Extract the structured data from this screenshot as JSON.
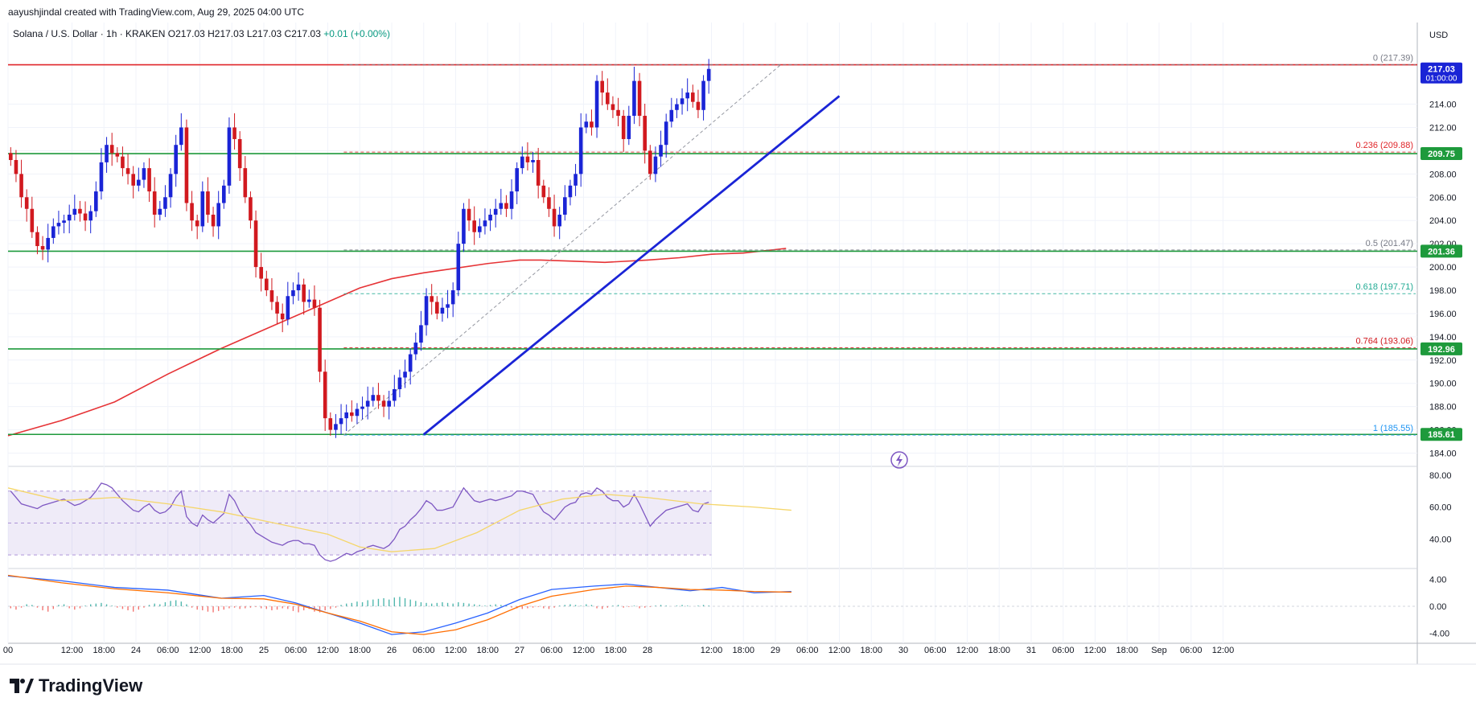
{
  "credit": "aayushjindal created with TradingView.com, Aug 29, 2025 04:00 UTC",
  "symbol": {
    "name": "Solana / U.S. Dollar · 1h · KRAKEN",
    "ohlc": "O217.03 H217.03 L217.03 C217.03",
    "change": "+0.01 (+0.00%)"
  },
  "brand": "TradingView",
  "colors": {
    "up": "#1a24d6",
    "down": "#d1191f",
    "support": "#1e9a3c",
    "resistance": "#e0262a",
    "trend": "#1a24d6",
    "ma": "#e63336",
    "rsi": "#7e57c2",
    "macd": "#2962ff",
    "signal": "#ff6d00"
  },
  "chart_data": {
    "type": "candlestick",
    "price_axis": {
      "currency": "USD",
      "ticks": [
        184,
        186,
        188,
        190,
        192,
        194,
        196,
        198,
        200,
        202,
        204,
        206,
        208,
        210,
        212,
        214
      ],
      "ylim": [
        183.0,
        219.5
      ]
    },
    "time_axis": {
      "ticks": [
        {
          "t": 0,
          "label": "00"
        },
        {
          "t": 12,
          "label": "12:00"
        },
        {
          "t": 18,
          "label": "18:00"
        },
        {
          "t": 24,
          "label": "24"
        },
        {
          "t": 30,
          "label": "06:00"
        },
        {
          "t": 36,
          "label": "12:00"
        },
        {
          "t": 42,
          "label": "18:00"
        },
        {
          "t": 48,
          "label": "25"
        },
        {
          "t": 54,
          "label": "06:00"
        },
        {
          "t": 60,
          "label": "12:00"
        },
        {
          "t": 66,
          "label": "18:00"
        },
        {
          "t": 72,
          "label": "26"
        },
        {
          "t": 78,
          "label": "06:00"
        },
        {
          "t": 84,
          "label": "12:00"
        },
        {
          "t": 90,
          "label": "18:00"
        },
        {
          "t": 96,
          "label": "27"
        },
        {
          "t": 102,
          "label": "06:00"
        },
        {
          "t": 108,
          "label": "12:00"
        },
        {
          "t": 114,
          "label": "18:00"
        },
        {
          "t": 120,
          "label": "28"
        },
        {
          "t": 132,
          "label": "12:00"
        },
        {
          "t": 138,
          "label": "18:00"
        },
        {
          "t": 144,
          "label": "29"
        },
        {
          "t": 150,
          "label": "06:00"
        },
        {
          "t": 156,
          "label": "12:00"
        },
        {
          "t": 162,
          "label": "18:00"
        },
        {
          "t": 168,
          "label": "30"
        },
        {
          "t": 174,
          "label": "06:00"
        },
        {
          "t": 180,
          "label": "12:00"
        },
        {
          "t": 186,
          "label": "18:00"
        },
        {
          "t": 192,
          "label": "31"
        },
        {
          "t": 198,
          "label": "06:00"
        },
        {
          "t": 204,
          "label": "12:00"
        },
        {
          "t": 210,
          "label": "18:00"
        },
        {
          "t": 216,
          "label": "Sep"
        },
        {
          "t": 222,
          "label": "06:00"
        },
        {
          "t": 228,
          "label": "12:00"
        }
      ]
    },
    "closes": [
      209.2,
      208.0,
      206.0,
      205.0,
      203.0,
      201.8,
      201.5,
      202.5,
      203.5,
      203.8,
      204.0,
      204.5,
      205.0,
      204.6,
      204.0,
      204.8,
      206.5,
      209.0,
      210.5,
      209.8,
      209.5,
      208.5,
      208.0,
      207.0,
      207.5,
      208.5,
      206.5,
      204.5,
      205.0,
      206.0,
      208.0,
      210.5,
      212.0,
      205.5,
      204.0,
      203.5,
      206.5,
      204.5,
      203.5,
      205.5,
      207.0,
      212.0,
      211.0,
      208.5,
      206.0,
      204.0,
      200.0,
      199.0,
      198.0,
      197.0,
      196.0,
      195.5,
      197.5,
      198.0,
      198.5,
      197.0,
      197.2,
      196.5,
      191.0,
      187.0,
      186.0,
      186.5,
      187.0,
      187.5,
      187.2,
      187.8,
      188.0,
      188.5,
      189.0,
      188.5,
      188.0,
      188.5,
      189.5,
      190.5,
      191.0,
      192.5,
      193.5,
      195.0,
      197.5,
      197.0,
      196.0,
      196.5,
      196.8,
      198.0,
      202.0,
      205.0,
      204.0,
      203.0,
      203.5,
      204.0,
      204.5,
      205.0,
      205.5,
      205.0,
      206.5,
      208.5,
      209.5,
      209.0,
      209.2,
      207.0,
      206.0,
      205.0,
      203.5,
      204.5,
      206.0,
      207.0,
      208.0,
      212.0,
      212.5,
      212.0,
      216.0,
      215.0,
      214.0,
      213.5,
      213.0,
      211.0,
      213.0,
      216.0,
      213.0,
      210.0,
      208.0,
      209.5,
      210.5,
      212.5,
      213.5,
      214.0,
      214.5,
      215.0,
      214.2,
      213.5,
      216.0,
      217.03
    ],
    "ma200": [
      [
        0,
        185.5
      ],
      [
        10,
        186.8
      ],
      [
        20,
        188.4
      ],
      [
        30,
        190.8
      ],
      [
        40,
        193.0
      ],
      [
        50,
        195.0
      ],
      [
        60,
        197.0
      ],
      [
        66,
        198.2
      ],
      [
        72,
        199.0
      ],
      [
        78,
        199.5
      ],
      [
        84,
        199.9
      ],
      [
        90,
        200.3
      ],
      [
        96,
        200.6
      ],
      [
        100,
        200.6
      ],
      [
        106,
        200.5
      ],
      [
        112,
        200.4
      ],
      [
        120,
        200.6
      ],
      [
        126,
        200.8
      ],
      [
        132,
        201.1
      ],
      [
        138,
        201.2
      ],
      [
        144,
        201.5
      ],
      [
        146,
        201.6
      ]
    ],
    "horizontal_levels": [
      {
        "name": "resistance",
        "price": 217.39,
        "color": "#e0262a"
      },
      {
        "name": "support-209",
        "price": 209.75,
        "color": "#1e9a3c"
      },
      {
        "name": "support-201",
        "price": 201.36,
        "color": "#1e9a3c"
      },
      {
        "name": "support-192",
        "price": 192.96,
        "color": "#1e9a3c"
      },
      {
        "name": "support-185",
        "price": 185.61,
        "color": "#1e9a3c"
      }
    ],
    "fibonacci": [
      {
        "label": "0",
        "value": "217.39",
        "price": 217.39,
        "color": "#787b86"
      },
      {
        "label": "0.236",
        "value": "209.88",
        "price": 209.88,
        "color": "#e0262a"
      },
      {
        "label": "0.5",
        "value": "201.47",
        "price": 201.47,
        "color": "#787b86"
      },
      {
        "label": "0.618",
        "value": "197.71",
        "price": 197.71,
        "color": "#22ab94"
      },
      {
        "label": "0.764",
        "value": "193.06",
        "price": 193.06,
        "color": "#d1191f"
      },
      {
        "label": "1",
        "value": "185.55",
        "price": 185.55,
        "color": "#2196f3"
      }
    ],
    "price_badges": [
      {
        "text": "217.03",
        "sub": "01:00:00",
        "price": 217.03,
        "color": "#1a24d6"
      },
      {
        "text": "209.75",
        "price": 209.75,
        "color": "#1e9a3c"
      },
      {
        "text": "201.36",
        "price": 201.36,
        "color": "#1e9a3c"
      },
      {
        "text": "192.96",
        "price": 192.96,
        "color": "#1e9a3c"
      },
      {
        "text": "185.61",
        "price": 185.61,
        "color": "#1e9a3c"
      }
    ],
    "trendline": {
      "from": [
        78,
        185.6
      ],
      "to": [
        156,
        214.7
      ]
    },
    "rsi": {
      "ticks": [
        40,
        60,
        80
      ],
      "band": [
        30,
        70
      ],
      "ylim": [
        22,
        84
      ],
      "values": [
        70,
        66,
        62,
        61,
        60,
        59,
        61,
        62,
        63,
        64,
        65,
        63,
        61,
        62,
        64,
        66,
        70,
        75,
        74,
        72,
        68,
        64,
        61,
        58,
        57,
        60,
        62,
        58,
        56,
        57,
        60,
        66,
        70,
        54,
        50,
        48,
        55,
        52,
        50,
        53,
        56,
        68,
        64,
        57,
        53,
        49,
        44,
        42,
        40,
        38,
        37,
        36,
        38,
        39,
        39,
        37,
        37,
        36,
        30,
        27,
        26,
        27,
        29,
        31,
        30,
        32,
        33,
        35,
        36,
        35,
        34,
        36,
        40,
        46,
        48,
        52,
        55,
        59,
        64,
        62,
        58,
        58,
        59,
        60,
        66,
        72,
        68,
        64,
        63,
        64,
        65,
        64,
        65,
        66,
        67,
        70,
        70,
        69,
        68,
        62,
        57,
        55,
        52,
        56,
        60,
        62,
        63,
        68,
        69,
        68,
        72,
        70,
        66,
        64,
        64,
        60,
        62,
        68,
        62,
        55,
        48,
        52,
        55,
        58,
        59,
        60,
        61,
        62,
        58,
        57,
        62,
        63
      ],
      "ma": [
        [
          0,
          72
        ],
        [
          10,
          64
        ],
        [
          20,
          66
        ],
        [
          30,
          62
        ],
        [
          40,
          57
        ],
        [
          50,
          50
        ],
        [
          60,
          43
        ],
        [
          66,
          35
        ],
        [
          72,
          32
        ],
        [
          80,
          34
        ],
        [
          88,
          44
        ],
        [
          96,
          58
        ],
        [
          104,
          65
        ],
        [
          112,
          68
        ],
        [
          120,
          66
        ],
        [
          130,
          62
        ],
        [
          140,
          60
        ],
        [
          147,
          58
        ]
      ]
    },
    "macd": {
      "ticks": [
        -4,
        0,
        4
      ],
      "ylim": [
        -5.5,
        5.5
      ],
      "macd": [
        [
          0,
          4.5
        ],
        [
          10,
          3.8
        ],
        [
          20,
          2.8
        ],
        [
          30,
          2.4
        ],
        [
          40,
          1.2
        ],
        [
          48,
          1.6
        ],
        [
          54,
          0.5
        ],
        [
          60,
          -1.0
        ],
        [
          66,
          -2.5
        ],
        [
          72,
          -4.2
        ],
        [
          78,
          -3.8
        ],
        [
          84,
          -2.5
        ],
        [
          90,
          -1.0
        ],
        [
          96,
          1.0
        ],
        [
          102,
          2.5
        ],
        [
          110,
          3.0
        ],
        [
          116,
          3.3
        ],
        [
          122,
          2.8
        ],
        [
          128,
          2.3
        ],
        [
          134,
          2.8
        ],
        [
          140,
          2.0
        ],
        [
          147,
          2.2
        ]
      ],
      "signal": [
        [
          0,
          4.6
        ],
        [
          10,
          3.5
        ],
        [
          20,
          2.6
        ],
        [
          30,
          2.0
        ],
        [
          40,
          1.2
        ],
        [
          48,
          1.1
        ],
        [
          54,
          0.3
        ],
        [
          60,
          -1.0
        ],
        [
          66,
          -2.2
        ],
        [
          72,
          -3.8
        ],
        [
          78,
          -4.2
        ],
        [
          84,
          -3.5
        ],
        [
          90,
          -2.0
        ],
        [
          96,
          0.0
        ],
        [
          102,
          1.5
        ],
        [
          110,
          2.5
        ],
        [
          116,
          3.0
        ],
        [
          122,
          2.8
        ],
        [
          128,
          2.5
        ],
        [
          134,
          2.4
        ],
        [
          140,
          2.2
        ],
        [
          147,
          2.1
        ]
      ],
      "hist": [
        -0.3,
        -0.5,
        -0.2,
        0.3,
        0.2,
        -0.2,
        -0.6,
        -0.8,
        -0.4,
        0.2,
        0.3,
        -0.3,
        -0.5,
        -0.3,
        0.1,
        0.3,
        0.4,
        0.5,
        0.3,
        0.1,
        -0.2,
        -0.4,
        -0.6,
        -0.8,
        -0.5,
        -0.2,
        0.2,
        0.4,
        0.3,
        0.6,
        0.8,
        0.9,
        0.7,
        0.3,
        -0.2,
        -0.5,
        -0.6,
        -0.8,
        -0.9,
        -0.7,
        -0.5,
        -0.3,
        -0.2,
        -0.4,
        -0.3,
        -0.2,
        -0.1,
        -0.3,
        -0.4,
        -0.6,
        -0.5,
        -0.3,
        -0.4,
        -0.7,
        -0.9,
        -0.6,
        -0.4,
        -0.8,
        -0.9,
        -0.6,
        -0.4,
        -0.2,
        0.2,
        0.4,
        0.5,
        0.7,
        0.6,
        0.9,
        1.0,
        1.1,
        1.2,
        1.0,
        1.3,
        1.4,
        1.2,
        1.0,
        0.8,
        0.6,
        0.5,
        0.4,
        0.5,
        0.6,
        0.5,
        0.4,
        0.6,
        0.5,
        0.4,
        0.3,
        0.2,
        0.1,
        0.2,
        0.3,
        0.2,
        0.1,
        -0.2,
        -0.3,
        -0.4,
        -0.3,
        -0.2,
        -0.1,
        -0.3,
        -0.4,
        -0.2,
        0.1,
        0.2,
        0.3,
        0.2,
        0.1,
        0.3,
        0.2,
        -0.3,
        -0.4,
        -0.2,
        0.1,
        0.2,
        -0.2,
        -0.1,
        0.1,
        -0.3,
        -0.2,
        -0.1,
        0.1,
        0.2,
        0.1,
        0.0,
        0.1,
        0.2,
        0.1,
        0.0,
        0.1,
        0.2,
        0.1
      ]
    }
  }
}
